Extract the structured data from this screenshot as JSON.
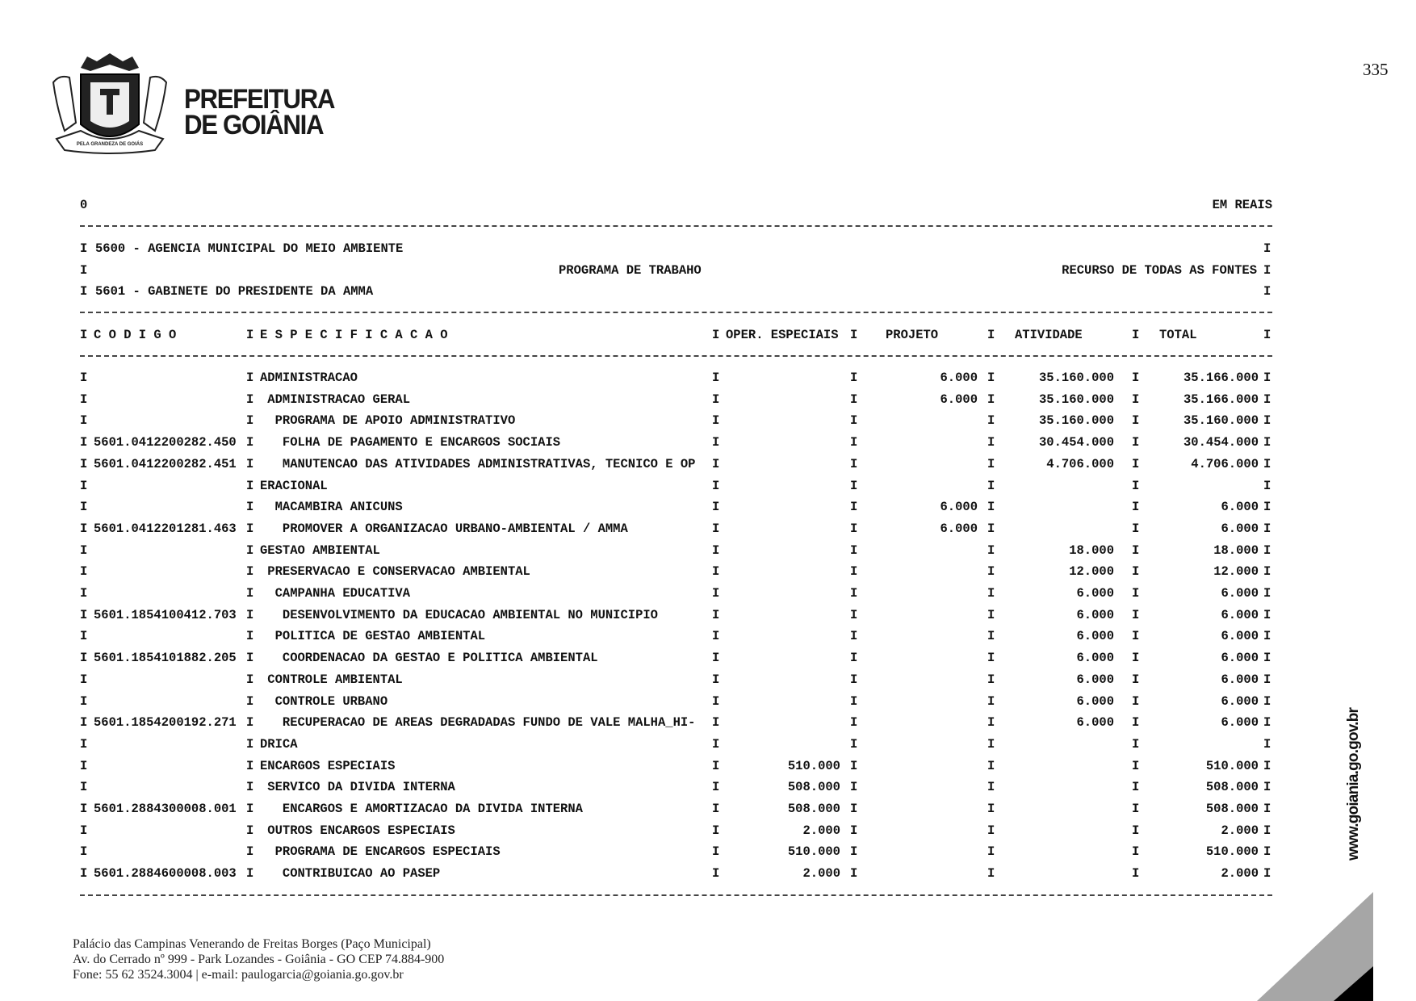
{
  "logo": {
    "line1": "PREFEITURA",
    "line2": "DE GOIÂNIA",
    "ribbon": "PELA GRANDEZA DE GOIÁS"
  },
  "page_number": "335",
  "report": {
    "top_left": "0",
    "unit": "EM REAIS",
    "org_line": "5600 - AGENCIA MUNICIPAL DO MEIO AMBIENTE",
    "program_title": "PROGRAMA DE TRABAHO",
    "resource_title": "RECURSO DE TODAS AS FONTES",
    "unit_line": "5601 - GABINETE DO PRESIDENTE DA AMMA",
    "bar": "I",
    "columns": {
      "codigo": "C O D I G O",
      "especificacao": "E S P E C I F I C A C A O",
      "oper": "OPER. ESPECIAIS",
      "projeto": "PROJETO",
      "atividade": "ATIVIDADE",
      "total": "TOTAL"
    },
    "rows": [
      {
        "code": "",
        "spec": "ADMINISTRACAO",
        "oper": "",
        "projeto": "6.000",
        "atividade": "35.160.000",
        "total": "35.166.000"
      },
      {
        "code": "",
        "spec": " ADMINISTRACAO GERAL",
        "oper": "",
        "projeto": "6.000",
        "atividade": "35.160.000",
        "total": "35.166.000"
      },
      {
        "code": "",
        "spec": "  PROGRAMA DE APOIO ADMINISTRATIVO",
        "oper": "",
        "projeto": "",
        "atividade": "35.160.000",
        "total": "35.160.000"
      },
      {
        "code": "5601.0412200282.450",
        "spec": "   FOLHA DE PAGAMENTO E ENCARGOS SOCIAIS",
        "oper": "",
        "projeto": "",
        "atividade": "30.454.000",
        "total": "30.454.000"
      },
      {
        "code": "5601.0412200282.451",
        "spec": "   MANUTENCAO DAS ATIVIDADES ADMINISTRATIVAS, TECNICO E OP",
        "oper": "",
        "projeto": "",
        "atividade": "4.706.000",
        "total": "4.706.000"
      },
      {
        "code": "",
        "spec": "ERACIONAL",
        "oper": "",
        "projeto": "",
        "atividade": "",
        "total": ""
      },
      {
        "code": "",
        "spec": "  MACAMBIRA ANICUNS",
        "oper": "",
        "projeto": "6.000",
        "atividade": "",
        "total": "6.000"
      },
      {
        "code": "5601.0412201281.463",
        "spec": "   PROMOVER A ORGANIZACAO URBANO-AMBIENTAL / AMMA",
        "oper": "",
        "projeto": "6.000",
        "atividade": "",
        "total": "6.000"
      },
      {
        "code": "",
        "spec": "GESTAO AMBIENTAL",
        "oper": "",
        "projeto": "",
        "atividade": "18.000",
        "total": "18.000"
      },
      {
        "code": "",
        "spec": " PRESERVACAO E CONSERVACAO AMBIENTAL",
        "oper": "",
        "projeto": "",
        "atividade": "12.000",
        "total": "12.000"
      },
      {
        "code": "",
        "spec": "  CAMPANHA EDUCATIVA",
        "oper": "",
        "projeto": "",
        "atividade": "6.000",
        "total": "6.000"
      },
      {
        "code": "5601.1854100412.703",
        "spec": "   DESENVOLVIMENTO DA EDUCACAO AMBIENTAL NO MUNICIPIO",
        "oper": "",
        "projeto": "",
        "atividade": "6.000",
        "total": "6.000"
      },
      {
        "code": "",
        "spec": "  POLITICA DE GESTAO AMBIENTAL",
        "oper": "",
        "projeto": "",
        "atividade": "6.000",
        "total": "6.000"
      },
      {
        "code": "5601.1854101882.205",
        "spec": "   COORDENACAO DA GESTAO E POLITICA AMBIENTAL",
        "oper": "",
        "projeto": "",
        "atividade": "6.000",
        "total": "6.000"
      },
      {
        "code": "",
        "spec": " CONTROLE AMBIENTAL",
        "oper": "",
        "projeto": "",
        "atividade": "6.000",
        "total": "6.000"
      },
      {
        "code": "",
        "spec": "  CONTROLE URBANO",
        "oper": "",
        "projeto": "",
        "atividade": "6.000",
        "total": "6.000"
      },
      {
        "code": "5601.1854200192.271",
        "spec": "   RECUPERACAO DE AREAS DEGRADADAS FUNDO DE VALE MALHA_HI-",
        "oper": "",
        "projeto": "",
        "atividade": "6.000",
        "total": "6.000"
      },
      {
        "code": "",
        "spec": "DRICA",
        "oper": "",
        "projeto": "",
        "atividade": "",
        "total": ""
      },
      {
        "code": "",
        "spec": "ENCARGOS ESPECIAIS",
        "oper": "510.000",
        "projeto": "",
        "atividade": "",
        "total": "510.000"
      },
      {
        "code": "",
        "spec": " SERVICO DA DIVIDA INTERNA",
        "oper": "508.000",
        "projeto": "",
        "atividade": "",
        "total": "508.000"
      },
      {
        "code": "5601.2884300008.001",
        "spec": "   ENCARGOS E AMORTIZACAO DA DIVIDA INTERNA",
        "oper": "508.000",
        "projeto": "",
        "atividade": "",
        "total": "508.000"
      },
      {
        "code": "",
        "spec": " OUTROS ENCARGOS ESPECIAIS",
        "oper": "2.000",
        "projeto": "",
        "atividade": "",
        "total": "2.000"
      },
      {
        "code": "",
        "spec": "  PROGRAMA DE ENCARGOS ESPECIAIS",
        "oper": "510.000",
        "projeto": "",
        "atividade": "",
        "total": "510.000"
      },
      {
        "code": "5601.2884600008.003",
        "spec": "   CONTRIBUICAO AO PASEP",
        "oper": "2.000",
        "projeto": "",
        "atividade": "",
        "total": "2.000"
      }
    ]
  },
  "footer": {
    "line1": "Palácio das Campinas Venerando de Freitas Borges (Paço Municipal)",
    "line2": "Av. do Cerrado nº 999 - Park Lozandes - Goiânia - GO CEP 74.884-900",
    "line3": "Fone: 55 62 3524.3004 | e-mail: paulogarcia@goiania.go.gov.br"
  },
  "website": "www.goiania.go.gov.br",
  "colors": {
    "corner_gray": "#a6a6a6",
    "corner_black": "#000000"
  }
}
